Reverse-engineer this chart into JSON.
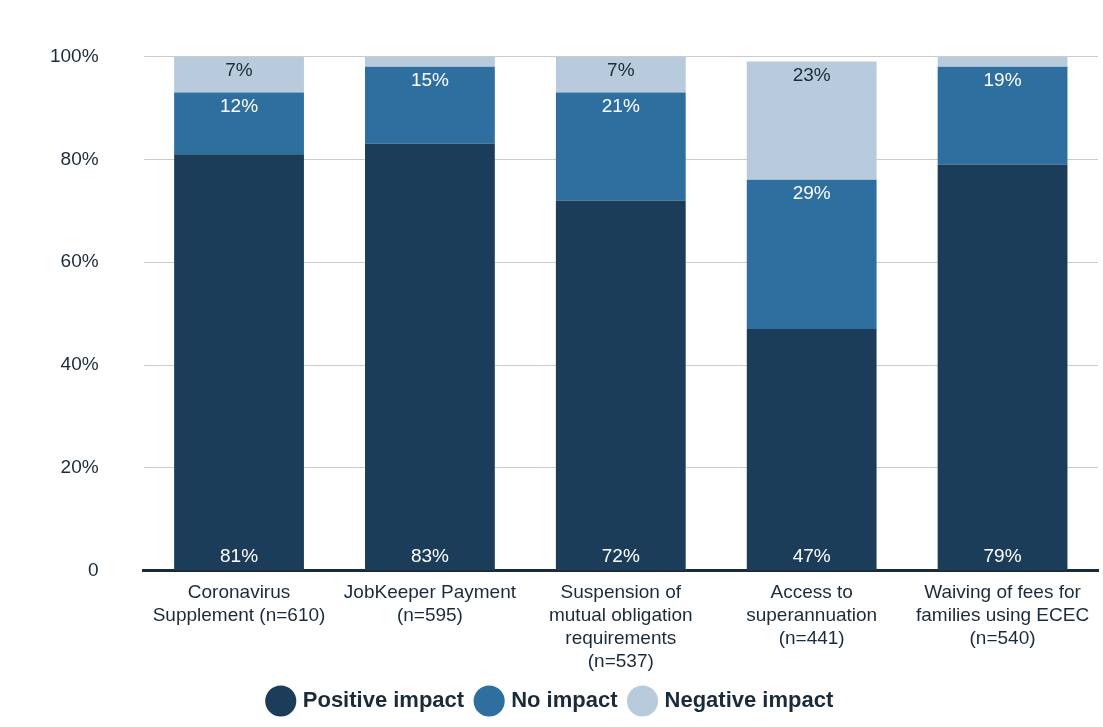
{
  "chart_data": {
    "type": "bar",
    "stacked": true,
    "categories": [
      "Coronavirus Supplement (n=610)",
      "JobKeeper Payment (n=595)",
      "Suspension of mutual obligation requirements (n=537)",
      "Access to superannuation (n=441)",
      "Waiving of fees for families using ECEC (n=540)"
    ],
    "series": [
      {
        "name": "Positive impact",
        "color": "#1b3d5a",
        "values": [
          81,
          83,
          72,
          47,
          79
        ],
        "value_labels": [
          "81%",
          "83%",
          "72%",
          "47%",
          "79%"
        ]
      },
      {
        "name": "No impact",
        "color": "#2e6fa0",
        "values": [
          12,
          15,
          21,
          29,
          19
        ],
        "value_labels": [
          "12%",
          "15%",
          "21%",
          "29%",
          "19%"
        ]
      },
      {
        "name": "Negative impact",
        "color": "#b7cbdc",
        "values": [
          7,
          2,
          7,
          23,
          2
        ],
        "value_labels": [
          "7%",
          null,
          "7%",
          "23%",
          null
        ]
      }
    ],
    "ylim": [
      0,
      100
    ],
    "yticks": [
      {
        "value": 0,
        "label": "0"
      },
      {
        "value": 20,
        "label": "20%"
      },
      {
        "value": 40,
        "label": "40%"
      },
      {
        "value": 60,
        "label": "60%"
      },
      {
        "value": 80,
        "label": "80%"
      },
      {
        "value": 100,
        "label": "100%"
      }
    ],
    "grid": "y",
    "legend": "bottom",
    "marker": "circle"
  }
}
